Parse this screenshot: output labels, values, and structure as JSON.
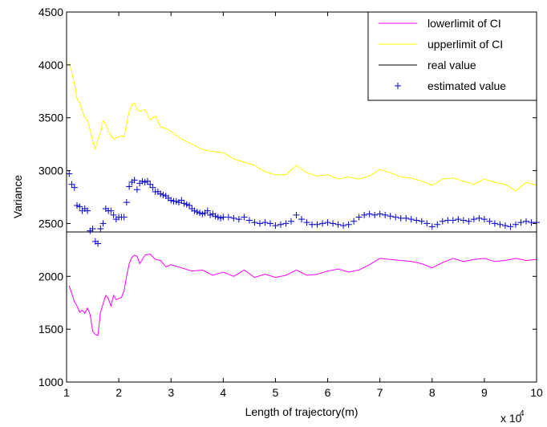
{
  "chart_data": {
    "type": "line",
    "title": "",
    "xlabel": "Length of trajectory(m)",
    "ylabel": "Variance",
    "x_multiplier_base": "x 10",
    "x_multiplier_exp": "4",
    "xlim": [
      1,
      10
    ],
    "ylim": [
      1000,
      4500
    ],
    "xticks": [
      1,
      2,
      3,
      4,
      5,
      6,
      7,
      8,
      9,
      10
    ],
    "yticks": [
      1000,
      1500,
      2000,
      2500,
      3000,
      3500,
      4000,
      4500
    ],
    "grid": false,
    "legend_position": "top-right",
    "series": [
      {
        "name": "lowerlimit of CI",
        "style": "line",
        "color": "#ff00ff",
        "x": [
          1.05,
          1.15,
          1.2,
          1.25,
          1.3,
          1.35,
          1.4,
          1.45,
          1.5,
          1.55,
          1.6,
          1.65,
          1.7,
          1.75,
          1.8,
          1.85,
          1.9,
          1.95,
          2.0,
          2.05,
          2.1,
          2.15,
          2.2,
          2.25,
          2.3,
          2.35,
          2.4,
          2.5,
          2.6,
          2.7,
          2.8,
          2.9,
          3.0,
          3.2,
          3.4,
          3.6,
          3.8,
          4.0,
          4.2,
          4.4,
          4.6,
          4.8,
          5.0,
          5.2,
          5.4,
          5.6,
          5.8,
          6.0,
          6.2,
          6.4,
          6.6,
          6.8,
          7.0,
          7.2,
          7.4,
          7.6,
          7.8,
          8.0,
          8.2,
          8.4,
          8.6,
          8.8,
          9.0,
          9.2,
          9.4,
          9.6,
          9.8,
          10.0
        ],
        "y": [
          1910,
          1760,
          1720,
          1660,
          1680,
          1650,
          1700,
          1640,
          1480,
          1450,
          1440,
          1660,
          1740,
          1820,
          1790,
          1720,
          1820,
          1780,
          1790,
          1800,
          1860,
          2000,
          2120,
          2180,
          2200,
          2190,
          2120,
          2200,
          2210,
          2160,
          2150,
          2090,
          2110,
          2080,
          2050,
          2060,
          2010,
          2040,
          2000,
          2060,
          1990,
          2020,
          1990,
          2010,
          2060,
          2010,
          2020,
          2050,
          2070,
          2040,
          2060,
          2110,
          2170,
          2160,
          2150,
          2140,
          2120,
          2080,
          2130,
          2170,
          2140,
          2160,
          2170,
          2140,
          2150,
          2170,
          2150,
          2160
        ]
      },
      {
        "name": "upperlimit of CI",
        "style": "line",
        "color": "#ffff00",
        "x": [
          1.05,
          1.1,
          1.15,
          1.2,
          1.25,
          1.3,
          1.35,
          1.4,
          1.45,
          1.5,
          1.55,
          1.6,
          1.65,
          1.7,
          1.75,
          1.8,
          1.85,
          1.9,
          1.95,
          2.0,
          2.05,
          2.1,
          2.15,
          2.2,
          2.25,
          2.3,
          2.35,
          2.4,
          2.5,
          2.6,
          2.7,
          2.8,
          2.9,
          3.0,
          3.2,
          3.4,
          3.6,
          3.8,
          4.0,
          4.2,
          4.4,
          4.6,
          4.8,
          5.0,
          5.2,
          5.4,
          5.6,
          5.8,
          6.0,
          6.2,
          6.4,
          6.6,
          6.8,
          7.0,
          7.2,
          7.4,
          7.6,
          7.8,
          8.0,
          8.2,
          8.4,
          8.6,
          8.8,
          9.0,
          9.2,
          9.4,
          9.6,
          9.8,
          10.0
        ],
        "y": [
          4020,
          3930,
          3820,
          3680,
          3640,
          3570,
          3500,
          3480,
          3380,
          3280,
          3200,
          3300,
          3360,
          3470,
          3440,
          3380,
          3330,
          3300,
          3310,
          3320,
          3330,
          3320,
          3440,
          3560,
          3620,
          3640,
          3580,
          3560,
          3580,
          3480,
          3520,
          3410,
          3400,
          3370,
          3300,
          3250,
          3200,
          3180,
          3170,
          3110,
          3080,
          3050,
          2990,
          2960,
          2960,
          3050,
          2980,
          2950,
          2960,
          2920,
          2940,
          2920,
          2950,
          3010,
          2980,
          2940,
          2930,
          2900,
          2860,
          2920,
          2930,
          2900,
          2870,
          2920,
          2890,
          2870,
          2810,
          2890,
          2860
        ]
      },
      {
        "name": "real value",
        "style": "line",
        "color": "#000000",
        "x": [
          1,
          10
        ],
        "y": [
          2420,
          2420
        ]
      },
      {
        "name": "estimated value",
        "style": "marker",
        "marker": "+",
        "color": "#0000cc",
        "x": [
          1.05,
          1.1,
          1.15,
          1.2,
          1.25,
          1.3,
          1.35,
          1.4,
          1.45,
          1.5,
          1.55,
          1.6,
          1.65,
          1.7,
          1.75,
          1.8,
          1.85,
          1.9,
          1.95,
          2.0,
          2.05,
          2.1,
          2.15,
          2.2,
          2.25,
          2.3,
          2.35,
          2.4,
          2.45,
          2.5,
          2.55,
          2.6,
          2.65,
          2.7,
          2.75,
          2.8,
          2.85,
          2.9,
          2.95,
          3.0,
          3.05,
          3.1,
          3.15,
          3.2,
          3.25,
          3.3,
          3.35,
          3.4,
          3.45,
          3.5,
          3.55,
          3.6,
          3.65,
          3.7,
          3.75,
          3.8,
          3.85,
          3.9,
          3.95,
          4.0,
          4.1,
          4.2,
          4.3,
          4.4,
          4.5,
          4.6,
          4.7,
          4.8,
          4.9,
          5.0,
          5.1,
          5.2,
          5.3,
          5.4,
          5.5,
          5.6,
          5.7,
          5.8,
          5.9,
          6.0,
          6.1,
          6.2,
          6.3,
          6.4,
          6.5,
          6.6,
          6.7,
          6.8,
          6.9,
          7.0,
          7.1,
          7.2,
          7.3,
          7.4,
          7.5,
          7.6,
          7.7,
          7.8,
          7.9,
          8.0,
          8.1,
          8.2,
          8.3,
          8.4,
          8.5,
          8.6,
          8.7,
          8.8,
          8.9,
          9.0,
          9.1,
          9.2,
          9.3,
          9.4,
          9.5,
          9.6,
          9.7,
          9.8,
          9.9,
          10.0
        ],
        "y": [
          2970,
          2870,
          2840,
          2670,
          2660,
          2620,
          2640,
          2620,
          2430,
          2450,
          2330,
          2310,
          2450,
          2500,
          2640,
          2620,
          2620,
          2580,
          2540,
          2560,
          2560,
          2560,
          2700,
          2850,
          2890,
          2910,
          2820,
          2880,
          2900,
          2890,
          2900,
          2870,
          2840,
          2800,
          2800,
          2780,
          2770,
          2760,
          2740,
          2720,
          2710,
          2710,
          2700,
          2720,
          2690,
          2680,
          2670,
          2640,
          2620,
          2610,
          2600,
          2590,
          2600,
          2620,
          2580,
          2590,
          2570,
          2560,
          2550,
          2560,
          2560,
          2550,
          2540,
          2560,
          2530,
          2510,
          2500,
          2510,
          2500,
          2480,
          2490,
          2500,
          2520,
          2580,
          2540,
          2510,
          2490,
          2490,
          2500,
          2510,
          2500,
          2490,
          2480,
          2490,
          2520,
          2560,
          2580,
          2590,
          2580,
          2590,
          2580,
          2570,
          2560,
          2550,
          2550,
          2540,
          2530,
          2520,
          2500,
          2470,
          2490,
          2520,
          2530,
          2530,
          2540,
          2530,
          2520,
          2540,
          2550,
          2540,
          2520,
          2500,
          2490,
          2480,
          2470,
          2490,
          2510,
          2520,
          2510,
          2510
        ]
      }
    ]
  }
}
